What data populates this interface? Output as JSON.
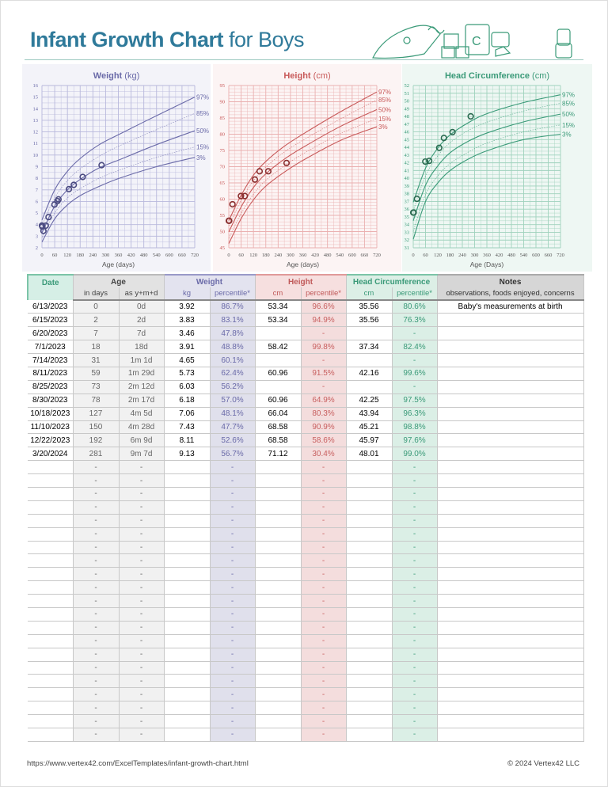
{
  "header": {
    "title_bold": "Infant Growth Chart",
    "title_rest": " for Boys"
  },
  "colors": {
    "title": "#2f7a9a",
    "weight": "#6a6aa8",
    "height": "#c85a5a",
    "head": "#3a9a78"
  },
  "charts": [
    {
      "key": "weight",
      "title": "Weight",
      "unit": " (kg)",
      "xlabel": "Age (days)",
      "color": "#6a6aa8",
      "bg": "#f3f3f9",
      "grid": "#b8b8dc",
      "ylim": [
        2,
        16
      ],
      "ystep": 1,
      "xlim": [
        0,
        720
      ],
      "xstep": 60,
      "percentile_labels": [
        "97%",
        "85%",
        "50%",
        "15%",
        "3%"
      ],
      "curve_ages": [
        0,
        60,
        120,
        180,
        270,
        365,
        540,
        720
      ],
      "curves": {
        "97%": [
          4.4,
          7.0,
          8.6,
          9.7,
          10.9,
          11.8,
          13.4,
          15.0
        ],
        "85%": [
          3.9,
          6.3,
          7.8,
          8.8,
          9.9,
          10.8,
          12.2,
          13.6
        ],
        "50%": [
          3.3,
          5.6,
          7.0,
          7.9,
          8.9,
          9.6,
          10.9,
          12.1
        ],
        "15%": [
          2.9,
          5.0,
          6.3,
          7.1,
          8.0,
          8.7,
          9.8,
          10.7
        ],
        "3%": [
          2.5,
          4.5,
          5.7,
          6.5,
          7.3,
          8.0,
          9.0,
          9.8
        ]
      },
      "points": [
        [
          0,
          3.92
        ],
        [
          2,
          3.83
        ],
        [
          7,
          3.46
        ],
        [
          18,
          3.91
        ],
        [
          31,
          4.65
        ],
        [
          59,
          5.73
        ],
        [
          73,
          6.03
        ],
        [
          78,
          6.18
        ],
        [
          127,
          7.06
        ],
        [
          150,
          7.43
        ],
        [
          192,
          8.11
        ],
        [
          281,
          9.13
        ]
      ]
    },
    {
      "key": "height",
      "title": "Height",
      "unit": " (cm)",
      "xlabel": "Age (days)",
      "color": "#c85a5a",
      "bg": "#fcf4f4",
      "grid": "#eab0b0",
      "ylim": [
        45,
        95
      ],
      "ystep": 5,
      "xlim": [
        0,
        720
      ],
      "xstep": 60,
      "percentile_labels": [
        "97%",
        "85%",
        "50%",
        "15%",
        "3%"
      ],
      "curve_ages": [
        0,
        60,
        120,
        180,
        270,
        365,
        540,
        720
      ],
      "curves": {
        "97%": [
          53.4,
          61.2,
          67.4,
          71.6,
          76.3,
          80.2,
          86.8,
          93.0
        ],
        "85%": [
          51.8,
          59.6,
          65.7,
          69.9,
          74.5,
          78.3,
          84.6,
          90.6
        ],
        "50%": [
          49.9,
          57.6,
          63.6,
          67.8,
          72.3,
          76.1,
          82.3,
          87.6
        ],
        "15%": [
          47.9,
          55.6,
          61.5,
          65.8,
          70.2,
          74.1,
          80.1,
          84.8
        ],
        "3%": [
          46.3,
          54.0,
          59.8,
          64.0,
          68.3,
          72.1,
          78.0,
          82.3
        ]
      },
      "points": [
        [
          0,
          53.34
        ],
        [
          2,
          53.34
        ],
        [
          18,
          58.42
        ],
        [
          59,
          60.96
        ],
        [
          78,
          60.96
        ],
        [
          127,
          66.04
        ],
        [
          150,
          68.58
        ],
        [
          192,
          68.58
        ],
        [
          281,
          71.12
        ]
      ]
    },
    {
      "key": "head",
      "title": "Head Circumference",
      "unit": " (cm)",
      "xlabel": "Age (Days)",
      "color": "#3a9a78",
      "bg": "#eef7f3",
      "grid": "#9fd2bd",
      "ylim": [
        31,
        52
      ],
      "ystep": 1,
      "xlim": [
        0,
        720
      ],
      "xstep": 60,
      "percentile_labels": [
        "97%",
        "85%",
        "50%",
        "15%",
        "3%"
      ],
      "curve_ages": [
        0,
        60,
        120,
        180,
        270,
        365,
        540,
        720
      ],
      "curves": {
        "97%": [
          36.9,
          41.3,
          43.9,
          45.6,
          47.2,
          48.4,
          49.8,
          50.8
        ],
        "85%": [
          35.8,
          40.3,
          42.9,
          44.6,
          46.2,
          47.3,
          48.7,
          49.7
        ],
        "50%": [
          34.5,
          39.1,
          41.6,
          43.3,
          44.8,
          45.9,
          47.3,
          48.3
        ],
        "15%": [
          33.1,
          37.9,
          40.3,
          41.9,
          43.4,
          44.6,
          46.0,
          46.9
        ],
        "3%": [
          32.1,
          37.0,
          39.4,
          41.0,
          42.5,
          43.6,
          45.0,
          45.7
        ]
      },
      "points": [
        [
          0,
          35.56
        ],
        [
          2,
          35.56
        ],
        [
          18,
          37.34
        ],
        [
          59,
          42.16
        ],
        [
          78,
          42.25
        ],
        [
          127,
          43.94
        ],
        [
          150,
          45.21
        ],
        [
          192,
          45.97
        ],
        [
          281,
          48.01
        ]
      ]
    }
  ],
  "table": {
    "headers": {
      "date": "Date",
      "age": "Age",
      "age_days": "in days",
      "age_ymd": "as y+m+d",
      "weight": "Weight",
      "kg": "kg",
      "weight_pct": "percentile*",
      "height": "Height",
      "height_cm": "cm",
      "height_pct": "percentile*",
      "head": "Head Circumference",
      "head_cm": "cm",
      "head_pct": "percentile*",
      "notes": "Notes",
      "notes_sub": "observations, foods enjoyed, concerns"
    },
    "rows": [
      [
        "6/13/2023",
        "0",
        "0d",
        "3.92",
        "86.7%",
        "53.34",
        "96.6%",
        "35.56",
        "80.6%",
        "Baby's measurements at birth"
      ],
      [
        "6/15/2023",
        "2",
        "2d",
        "3.83",
        "83.1%",
        "53.34",
        "94.9%",
        "35.56",
        "76.3%",
        ""
      ],
      [
        "6/20/2023",
        "7",
        "7d",
        "3.46",
        "47.8%",
        "",
        "-",
        "",
        "-",
        ""
      ],
      [
        "7/1/2023",
        "18",
        "18d",
        "3.91",
        "48.8%",
        "58.42",
        "99.8%",
        "37.34",
        "82.4%",
        ""
      ],
      [
        "7/14/2023",
        "31",
        "1m 1d",
        "4.65",
        "60.1%",
        "",
        "-",
        "",
        "-",
        ""
      ],
      [
        "8/11/2023",
        "59",
        "1m 29d",
        "5.73",
        "62.4%",
        "60.96",
        "91.5%",
        "42.16",
        "99.6%",
        ""
      ],
      [
        "8/25/2023",
        "73",
        "2m 12d",
        "6.03",
        "56.2%",
        "",
        "-",
        "",
        "-",
        ""
      ],
      [
        "8/30/2023",
        "78",
        "2m 17d",
        "6.18",
        "57.0%",
        "60.96",
        "64.9%",
        "42.25",
        "97.5%",
        ""
      ],
      [
        "10/18/2023",
        "127",
        "4m 5d",
        "7.06",
        "48.1%",
        "66.04",
        "80.3%",
        "43.94",
        "96.3%",
        ""
      ],
      [
        "11/10/2023",
        "150",
        "4m 28d",
        "7.43",
        "47.7%",
        "68.58",
        "90.9%",
        "45.21",
        "98.8%",
        ""
      ],
      [
        "12/22/2023",
        "192",
        "6m 9d",
        "8.11",
        "52.6%",
        "68.58",
        "58.6%",
        "45.97",
        "97.6%",
        ""
      ],
      [
        "3/20/2024",
        "281",
        "9m 7d",
        "9.13",
        "56.7%",
        "71.12",
        "30.4%",
        "48.01",
        "99.0%",
        ""
      ]
    ],
    "empty_row": [
      "",
      "-",
      "-",
      "",
      "-",
      "",
      "-",
      "",
      "-",
      ""
    ],
    "empty_row_count": 21
  },
  "footer": {
    "url": "https://www.vertex42.com/ExcelTemplates/infant-growth-chart.html",
    "copyright": "© 2024 Vertex42 LLC"
  }
}
